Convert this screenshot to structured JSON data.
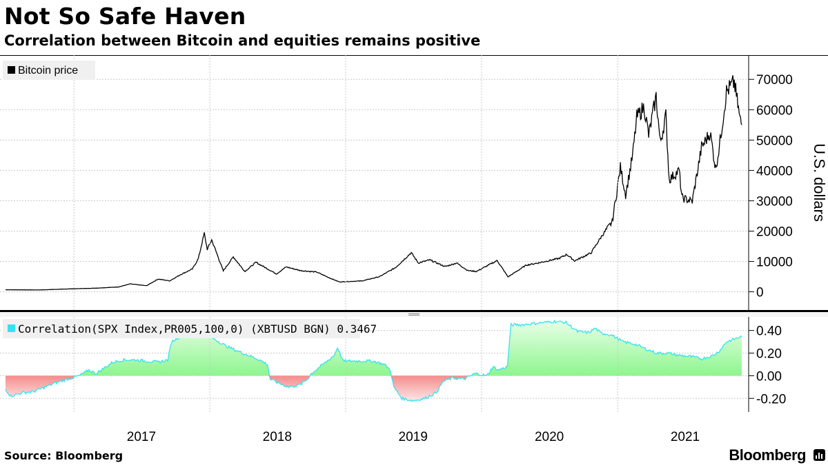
{
  "header": {
    "title": "Not So Safe Haven",
    "subtitle": "Correlation between Bitcoin and equities remains positive"
  },
  "footer": {
    "source": "Source:  Bloomberg",
    "brand": "Bloomberg"
  },
  "colors": {
    "price_line": "#000000",
    "positive_fill": "#8ef58e",
    "negative_fill": "#f48c8c",
    "correlation_line": "#33e3f0",
    "legend_bg": "#f0f0f0",
    "grid": "#c8c8c8"
  },
  "chart_data": [
    {
      "type": "line",
      "legend": "Bitcoin price",
      "legend_position": "top-left",
      "ylabel": "U.S. dollars",
      "ylim": [
        -6000,
        78000
      ],
      "yticks": [
        0,
        10000,
        20000,
        30000,
        40000,
        50000,
        60000,
        70000
      ],
      "ytick_labels": [
        "0",
        "10000",
        "20000",
        "30000",
        "40000",
        "50000",
        "60000",
        "70000"
      ],
      "grid": true,
      "x_range": [
        "2016-07-01",
        "2021-11-30"
      ],
      "xticks": [
        "2017",
        "2018",
        "2019",
        "2020",
        "2021"
      ],
      "series": [
        {
          "name": "Bitcoin price",
          "points": [
            [
              "2016-07-01",
              670
            ],
            [
              "2016-10-01",
              615
            ],
            [
              "2017-01-01",
              1000
            ],
            [
              "2017-03-01",
              1200
            ],
            [
              "2017-05-01",
              1600
            ],
            [
              "2017-06-01",
              2600
            ],
            [
              "2017-07-15",
              2000
            ],
            [
              "2017-08-15",
              4200
            ],
            [
              "2017-09-15",
              3600
            ],
            [
              "2017-10-15",
              5700
            ],
            [
              "2017-11-15",
              7500
            ],
            [
              "2017-12-01",
              10900
            ],
            [
              "2017-12-17",
              19300
            ],
            [
              "2017-12-25",
              14000
            ],
            [
              "2018-01-06",
              17100
            ],
            [
              "2018-02-06",
              6900
            ],
            [
              "2018-03-05",
              11500
            ],
            [
              "2018-04-05",
              6700
            ],
            [
              "2018-05-05",
              9700
            ],
            [
              "2018-06-29",
              5900
            ],
            [
              "2018-07-25",
              8200
            ],
            [
              "2018-09-01",
              7000
            ],
            [
              "2018-10-15",
              6500
            ],
            [
              "2018-11-20",
              4500
            ],
            [
              "2018-12-15",
              3250
            ],
            [
              "2019-02-15",
              3600
            ],
            [
              "2019-04-02",
              5000
            ],
            [
              "2019-05-15",
              8000
            ],
            [
              "2019-06-26",
              12900
            ],
            [
              "2019-07-15",
              9500
            ],
            [
              "2019-08-15",
              10500
            ],
            [
              "2019-09-25",
              8300
            ],
            [
              "2019-10-26",
              9500
            ],
            [
              "2019-11-25",
              7000
            ],
            [
              "2019-12-18",
              6700
            ],
            [
              "2020-02-12",
              10300
            ],
            [
              "2020-03-12",
              4900
            ],
            [
              "2020-04-30",
              8800
            ],
            [
              "2020-06-01",
              9500
            ],
            [
              "2020-07-27",
              11000
            ],
            [
              "2020-08-17",
              12300
            ],
            [
              "2020-09-07",
              10200
            ],
            [
              "2020-10-21",
              12800
            ],
            [
              "2020-11-20",
              18600
            ],
            [
              "2020-12-17",
              23000
            ],
            [
              "2021-01-08",
              41000
            ],
            [
              "2021-01-22",
              32000
            ],
            [
              "2021-02-10",
              45000
            ],
            [
              "2021-02-21",
              57500
            ],
            [
              "2021-03-13",
              61000
            ],
            [
              "2021-03-25",
              51500
            ],
            [
              "2021-04-14",
              64400
            ],
            [
              "2021-04-25",
              49000
            ],
            [
              "2021-05-10",
              58000
            ],
            [
              "2021-05-19",
              37000
            ],
            [
              "2021-06-15",
              40000
            ],
            [
              "2021-06-22",
              31000
            ],
            [
              "2021-07-20",
              29800
            ],
            [
              "2021-08-14",
              47500
            ],
            [
              "2021-09-06",
              52500
            ],
            [
              "2021-09-21",
              40500
            ],
            [
              "2021-10-01",
              48000
            ],
            [
              "2021-10-20",
              66000
            ],
            [
              "2021-11-10",
              69000
            ],
            [
              "2021-11-25",
              57000
            ],
            [
              "2021-11-30",
              55000
            ]
          ]
        }
      ]
    },
    {
      "type": "area",
      "legend": "Correlation(SPX Index,PR005,100,0) (XBTUSD BGN) 0.3467",
      "legend_position": "top-left",
      "last_value": 0.3467,
      "ylim": [
        -0.32,
        0.52
      ],
      "yticks": [
        -0.2,
        0,
        0.2,
        0.4
      ],
      "ytick_labels": [
        "-0.20",
        "0.00",
        "0.20",
        "0.40"
      ],
      "grid": true,
      "x_range": [
        "2016-07-01",
        "2021-11-30"
      ],
      "xticks": [
        "2017",
        "2018",
        "2019",
        "2020",
        "2021"
      ],
      "series": [
        {
          "name": "Correlation(SPX Index,PR005,100,0) (XBTUSD BGN)",
          "points": [
            [
              "2016-07-01",
              -0.12
            ],
            [
              "2016-07-15",
              -0.18
            ],
            [
              "2016-08-15",
              -0.15
            ],
            [
              "2016-09-15",
              -0.14
            ],
            [
              "2016-10-15",
              -0.1
            ],
            [
              "2016-11-15",
              -0.06
            ],
            [
              "2016-12-15",
              -0.03
            ],
            [
              "2017-01-15",
              0.0
            ],
            [
              "2017-02-10",
              0.05
            ],
            [
              "2017-03-01",
              0.02
            ],
            [
              "2017-03-15",
              0.05
            ],
            [
              "2017-04-15",
              0.12
            ],
            [
              "2017-05-15",
              0.14
            ],
            [
              "2017-06-15",
              0.14
            ],
            [
              "2017-07-15",
              0.13
            ],
            [
              "2017-08-15",
              0.12
            ],
            [
              "2017-09-10",
              0.14
            ],
            [
              "2017-09-20",
              0.3
            ],
            [
              "2017-10-15",
              0.35
            ],
            [
              "2017-11-15",
              0.38
            ],
            [
              "2017-12-15",
              0.37
            ],
            [
              "2018-01-15",
              0.32
            ],
            [
              "2018-02-15",
              0.26
            ],
            [
              "2018-03-15",
              0.22
            ],
            [
              "2018-04-15",
              0.18
            ],
            [
              "2018-05-15",
              0.14
            ],
            [
              "2018-06-05",
              0.1
            ],
            [
              "2018-06-12",
              -0.03
            ],
            [
              "2018-07-01",
              -0.06
            ],
            [
              "2018-08-01",
              -0.1
            ],
            [
              "2018-09-01",
              -0.08
            ],
            [
              "2018-09-20",
              -0.03
            ],
            [
              "2018-10-01",
              0.02
            ],
            [
              "2018-11-01",
              0.1
            ],
            [
              "2018-12-01",
              0.18
            ],
            [
              "2018-12-10",
              0.25
            ],
            [
              "2018-12-25",
              0.13
            ],
            [
              "2019-01-15",
              0.13
            ],
            [
              "2019-02-15",
              0.13
            ],
            [
              "2019-03-15",
              0.13
            ],
            [
              "2019-04-15",
              0.1
            ],
            [
              "2019-05-01",
              0.05
            ],
            [
              "2019-05-10",
              -0.1
            ],
            [
              "2019-06-01",
              -0.2
            ],
            [
              "2019-07-01",
              -0.22
            ],
            [
              "2019-08-01",
              -0.2
            ],
            [
              "2019-09-01",
              -0.15
            ],
            [
              "2019-09-20",
              -0.05
            ],
            [
              "2019-10-15",
              -0.02
            ],
            [
              "2019-11-15",
              -0.03
            ],
            [
              "2019-12-15",
              0.02
            ],
            [
              "2020-01-15",
              0.0
            ],
            [
              "2020-02-01",
              0.08
            ],
            [
              "2020-02-15",
              0.05
            ],
            [
              "2020-03-10",
              0.08
            ],
            [
              "2020-03-20",
              0.45
            ],
            [
              "2020-04-15",
              0.45
            ],
            [
              "2020-05-15",
              0.46
            ],
            [
              "2020-06-15",
              0.47
            ],
            [
              "2020-07-15",
              0.48
            ],
            [
              "2020-08-15",
              0.47
            ],
            [
              "2020-09-15",
              0.39
            ],
            [
              "2020-10-15",
              0.38
            ],
            [
              "2020-11-01",
              0.42
            ],
            [
              "2020-11-15",
              0.38
            ],
            [
              "2020-12-15",
              0.36
            ],
            [
              "2021-01-15",
              0.3
            ],
            [
              "2021-02-15",
              0.28
            ],
            [
              "2021-03-15",
              0.24
            ],
            [
              "2021-04-15",
              0.2
            ],
            [
              "2021-05-15",
              0.2
            ],
            [
              "2021-06-15",
              0.18
            ],
            [
              "2021-07-15",
              0.17
            ],
            [
              "2021-08-15",
              0.15
            ],
            [
              "2021-09-15",
              0.18
            ],
            [
              "2021-10-01",
              0.22
            ],
            [
              "2021-10-20",
              0.3
            ],
            [
              "2021-11-15",
              0.33
            ],
            [
              "2021-11-30",
              0.3467
            ]
          ]
        }
      ]
    }
  ]
}
